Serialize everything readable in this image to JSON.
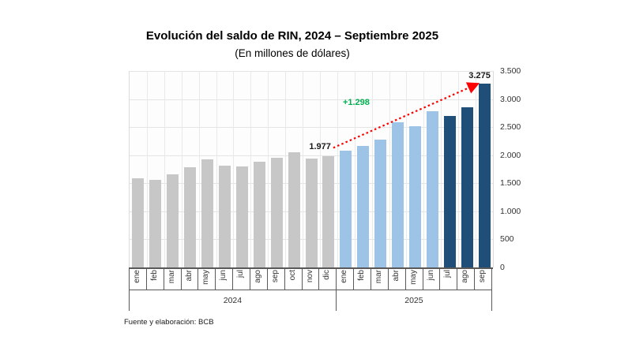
{
  "chart_data": {
    "type": "bar",
    "title": "Evolución del saldo de RIN, 2024 – Septiembre 2025",
    "subtitle": "(En millones de dólares)",
    "source": "Fuente y elaboración: BCB",
    "ylim": [
      0,
      3500
    ],
    "grid": true,
    "legend_position": "none",
    "y_ticks": [
      {
        "value": 3500,
        "label": "3.500"
      },
      {
        "value": 3000,
        "label": "3.000"
      },
      {
        "value": 2500,
        "label": "2.500"
      },
      {
        "value": 2000,
        "label": "2.000"
      },
      {
        "value": 1500,
        "label": "1.500"
      },
      {
        "value": 1000,
        "label": "1.000"
      },
      {
        "value": 500,
        "label": "500"
      },
      {
        "value": 0,
        "label": "0"
      }
    ],
    "groups": [
      {
        "year": "2024",
        "months": [
          "ene",
          "feb",
          "mar",
          "abr",
          "may",
          "jun",
          "jul",
          "ago",
          "sep",
          "oct",
          "nov",
          "dic"
        ],
        "values": [
          1590,
          1560,
          1665,
          1780,
          1920,
          1820,
          1805,
          1885,
          1950,
          2055,
          1935,
          1977
        ],
        "bar_colors": [
          "gray",
          "gray",
          "gray",
          "gray",
          "gray",
          "gray",
          "gray",
          "gray",
          "gray",
          "gray",
          "gray",
          "gray"
        ]
      },
      {
        "year": "2025",
        "months": [
          "ene",
          "feb",
          "mar",
          "abr",
          "may",
          "jun",
          "jul",
          "ago",
          "sep"
        ],
        "values": [
          2075,
          2160,
          2275,
          2590,
          2510,
          2780,
          2700,
          2850,
          3275
        ],
        "bar_colors": [
          "light_blue",
          "light_blue",
          "light_blue",
          "light_blue",
          "light_blue",
          "light_blue",
          "dark_blue",
          "dark_blue",
          "dark_blue"
        ]
      }
    ],
    "annotations": {
      "start_value_label": "1.977",
      "end_value_label": "3.275",
      "delta_label": "+1.298"
    },
    "colors": {
      "gray": "#C7C7C7",
      "light_blue": "#9DC3E6",
      "dark_blue": "#1F4E79",
      "arrow_red": "#FF0000",
      "delta_green": "#00B050"
    }
  }
}
